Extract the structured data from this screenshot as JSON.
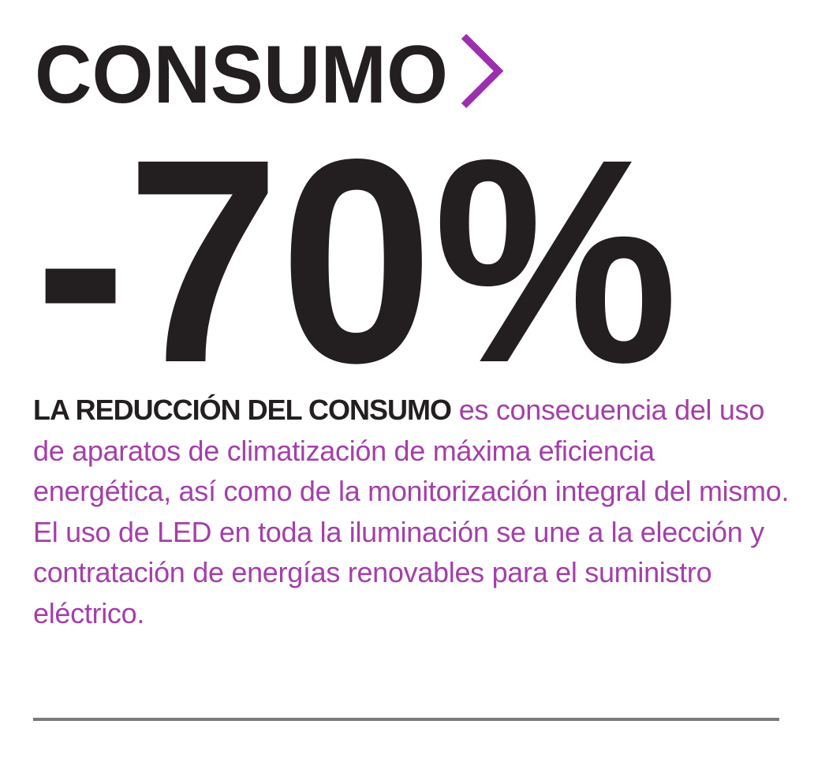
{
  "header": {
    "title": "CONSUMO"
  },
  "figure": {
    "value": "-70%"
  },
  "paragraph": {
    "lead": "LA REDUCCIÓN DEL CONSUMO",
    "text": "es consecuencia del uso de aparatos de climatización de máxima eficiencia energética, así como de la monitorización integral del mismo. El uso de LED en toda la iluminación se une a la elección y contratación de energías renovables para el suministro eléctrico."
  }
}
